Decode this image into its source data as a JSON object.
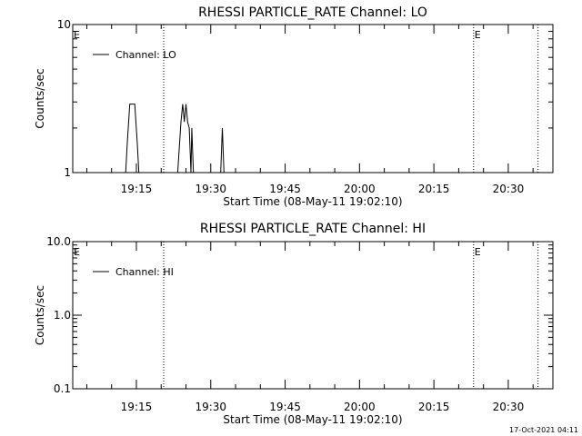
{
  "footer": {
    "timestamp": "17-Oct-2021 04:11"
  },
  "chart_data": [
    {
      "type": "line",
      "title": "RHESSI PARTICLE_RATE Channel: LO",
      "xlabel": "Start Time (08-May-11 19:02:10)",
      "ylabel": "Counts/sec",
      "y_scale": "log",
      "ylim": [
        1,
        10
      ],
      "y_ticks": [
        {
          "v": 1,
          "label": "1"
        },
        {
          "v": 10,
          "label": "10"
        }
      ],
      "xlim": [
        "19:02:10",
        "20:39:00"
      ],
      "x_ticks": [
        {
          "t": "19:15",
          "label": "19:15"
        },
        {
          "t": "19:30",
          "label": "19:30"
        },
        {
          "t": "19:45",
          "label": "19:45"
        },
        {
          "t": "20:00",
          "label": "20:00"
        },
        {
          "t": "20:15",
          "label": "20:15"
        },
        {
          "t": "20:30",
          "label": "20:30"
        }
      ],
      "vlines": [
        "19:20:30",
        "20:23:00",
        "20:36:00"
      ],
      "markers": [
        {
          "t": "19:02:10",
          "label": "E"
        },
        {
          "t": "20:23:00",
          "label": "E"
        }
      ],
      "legend": {
        "position": "top-left"
      },
      "series": [
        {
          "name": "Channel: LO",
          "points": [
            [
              "19:12:50",
              1
            ],
            [
              "19:13:10",
              1.6
            ],
            [
              "19:13:40",
              2.9
            ],
            [
              "19:14:40",
              2.9
            ],
            [
              "19:15:10",
              1.6
            ],
            [
              "19:15:30",
              1
            ],
            [
              "19:23:20",
              1
            ],
            [
              "19:24:00",
              2.2
            ],
            [
              "19:24:20",
              2.9
            ],
            [
              "19:24:40",
              2.2
            ],
            [
              "19:25:00",
              2.9
            ],
            [
              "19:25:20",
              2.2
            ],
            [
              "19:25:40",
              2.0
            ],
            [
              "19:26:00",
              1
            ],
            [
              "19:26:10",
              2.0
            ],
            [
              "19:26:30",
              1
            ],
            [
              "19:32:00",
              1
            ],
            [
              "19:32:20",
              2.0
            ],
            [
              "19:32:40",
              1
            ]
          ]
        }
      ]
    },
    {
      "type": "line",
      "title": "RHESSI PARTICLE_RATE Channel: HI",
      "xlabel": "Start Time (08-May-11 19:02:10)",
      "ylabel": "Counts/sec",
      "y_scale": "log",
      "ylim": [
        0.1,
        10
      ],
      "y_ticks": [
        {
          "v": 0.1,
          "label": "0.1"
        },
        {
          "v": 1,
          "label": "1.0"
        },
        {
          "v": 10,
          "label": "10.0"
        }
      ],
      "xlim": [
        "19:02:10",
        "20:39:00"
      ],
      "x_ticks": [
        {
          "t": "19:15",
          "label": "19:15"
        },
        {
          "t": "19:30",
          "label": "19:30"
        },
        {
          "t": "19:45",
          "label": "19:45"
        },
        {
          "t": "20:00",
          "label": "20:00"
        },
        {
          "t": "20:15",
          "label": "20:15"
        },
        {
          "t": "20:30",
          "label": "20:30"
        }
      ],
      "vlines": [
        "19:20:30",
        "20:23:00",
        "20:36:00"
      ],
      "markers": [
        {
          "t": "19:02:10",
          "label": "E"
        },
        {
          "t": "20:23:00",
          "label": "E"
        }
      ],
      "legend": {
        "position": "top-left"
      },
      "series": [
        {
          "name": "Channel: HI",
          "points": []
        }
      ]
    }
  ]
}
